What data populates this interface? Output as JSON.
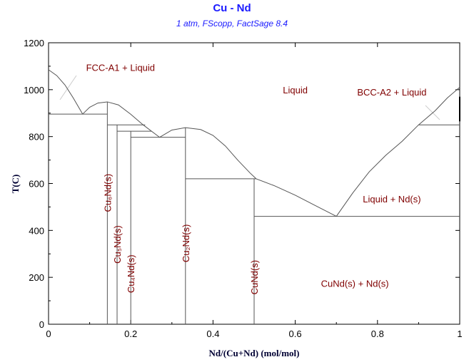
{
  "chart_data": {
    "type": "line",
    "title": "Cu - Nd",
    "subtitle": "1 atm, FScopp, FactSage 8.4",
    "xlabel": "Nd/(Cu+Nd) (mol/mol)",
    "ylabel": "T(C)",
    "xlim": [
      0,
      1
    ],
    "ylim": [
      0,
      1200
    ],
    "xticks": [
      "0",
      "0.2",
      "0.4",
      "0.6",
      "0.8",
      "1"
    ],
    "xtick_values": [
      0,
      0.2,
      0.4,
      0.6,
      0.8,
      1
    ],
    "yticks": [
      "0",
      "200",
      "400",
      "600",
      "800",
      "1000",
      "1200"
    ],
    "ytick_values": [
      0,
      200,
      400,
      600,
      800,
      1000,
      1200
    ],
    "grid": false,
    "line_color": "#555555",
    "label_color": "#800000",
    "title_color": "#1a1aff",
    "lines": [
      {
        "name": "liquidus-cu",
        "points": [
          [
            0,
            1085
          ],
          [
            0.02,
            1060
          ],
          [
            0.04,
            1020
          ],
          [
            0.06,
            965
          ],
          [
            0.083,
            896
          ]
        ]
      },
      {
        "name": "liquidus-cu6nd",
        "points": [
          [
            0.083,
            896
          ],
          [
            0.1,
            925
          ],
          [
            0.12,
            943
          ],
          [
            0.143,
            948
          ],
          [
            0.17,
            935
          ],
          [
            0.2,
            895
          ],
          [
            0.23,
            850
          ],
          [
            0.27,
            797
          ]
        ]
      },
      {
        "name": "liquidus-cu2nd",
        "points": [
          [
            0.27,
            797
          ],
          [
            0.3,
            828
          ],
          [
            0.333,
            838
          ],
          [
            0.37,
            830
          ],
          [
            0.4,
            805
          ],
          [
            0.43,
            760
          ],
          [
            0.46,
            700
          ],
          [
            0.49,
            645
          ],
          [
            0.505,
            620
          ],
          [
            0.55,
            590
          ],
          [
            0.6,
            550
          ],
          [
            0.65,
            505
          ],
          [
            0.7,
            460
          ]
        ]
      },
      {
        "name": "liquidus-nd",
        "points": [
          [
            0.7,
            460
          ],
          [
            0.74,
            560
          ],
          [
            0.78,
            650
          ],
          [
            0.82,
            720
          ],
          [
            0.86,
            780
          ],
          [
            0.9,
            850
          ],
          [
            0.94,
            910
          ],
          [
            0.97,
            965
          ],
          [
            1,
            1010
          ]
        ]
      },
      {
        "name": "eutectic-cu",
        "points": [
          [
            0,
            896
          ],
          [
            0.143,
            896
          ]
        ]
      },
      {
        "name": "peritectic-cu5nd",
        "points": [
          [
            0.143,
            850
          ],
          [
            0.235,
            850
          ]
        ]
      },
      {
        "name": "peritectic-cu4nd",
        "points": [
          [
            0.1667,
            823
          ],
          [
            0.25,
            823
          ]
        ]
      },
      {
        "name": "eutectic-cu4nd-cu2nd",
        "points": [
          [
            0.2,
            797
          ],
          [
            0.333,
            797
          ]
        ]
      },
      {
        "name": "peritectic-cund",
        "points": [
          [
            0.333,
            620
          ],
          [
            0.505,
            620
          ]
        ]
      },
      {
        "name": "eutectic-cund-nd",
        "points": [
          [
            0.5,
            460
          ],
          [
            1,
            460
          ]
        ]
      },
      {
        "name": "bcc-transition",
        "points": [
          [
            0.9,
            850
          ],
          [
            1,
            850
          ]
        ]
      },
      {
        "name": "cu6nd-line",
        "points": [
          [
            0.143,
            0
          ],
          [
            0.143,
            948
          ]
        ]
      },
      {
        "name": "cu5nd-line",
        "points": [
          [
            0.1667,
            0
          ],
          [
            0.1667,
            850
          ]
        ]
      },
      {
        "name": "cu4nd-line",
        "points": [
          [
            0.2,
            0
          ],
          [
            0.2,
            823
          ]
        ]
      },
      {
        "name": "cu2nd-line",
        "points": [
          [
            0.333,
            0
          ],
          [
            0.333,
            838
          ]
        ]
      },
      {
        "name": "cund-line",
        "points": [
          [
            0.5,
            0
          ],
          [
            0.5,
            620
          ]
        ]
      },
      {
        "name": "nd-transition-mark",
        "points": [
          [
            1,
            970
          ],
          [
            1,
            865
          ]
        ]
      }
    ],
    "annotations": [
      {
        "text": "FCC-A1 + Liquid",
        "x": 0.175,
        "y": 1080,
        "rotate": 0
      },
      {
        "text": "Liquid",
        "x": 0.6,
        "y": 985,
        "rotate": 0
      },
      {
        "text": "BCC-A2 + Liquid",
        "x": 0.835,
        "y": 975,
        "rotate": 0
      },
      {
        "text": "Liquid + Nd(s)",
        "x": 0.835,
        "y": 520,
        "rotate": 0
      },
      {
        "text": "CuNd(s) + Nd(s)",
        "x": 0.745,
        "y": 160,
        "rotate": 0
      },
      {
        "text": "Cu₆Nd(s)",
        "x": 0.143,
        "y": 560,
        "rotate": -90
      },
      {
        "text": "Cu₅Nd(s)",
        "x": 0.1667,
        "y": 340,
        "rotate": -90
      },
      {
        "text": "Cu₄Nd(s)",
        "x": 0.2,
        "y": 215,
        "rotate": -90
      },
      {
        "text": "Cu₂Nd(s)",
        "x": 0.333,
        "y": 345,
        "rotate": -90
      },
      {
        "text": "CuNd(s)",
        "x": 0.5,
        "y": 200,
        "rotate": -90
      }
    ]
  }
}
